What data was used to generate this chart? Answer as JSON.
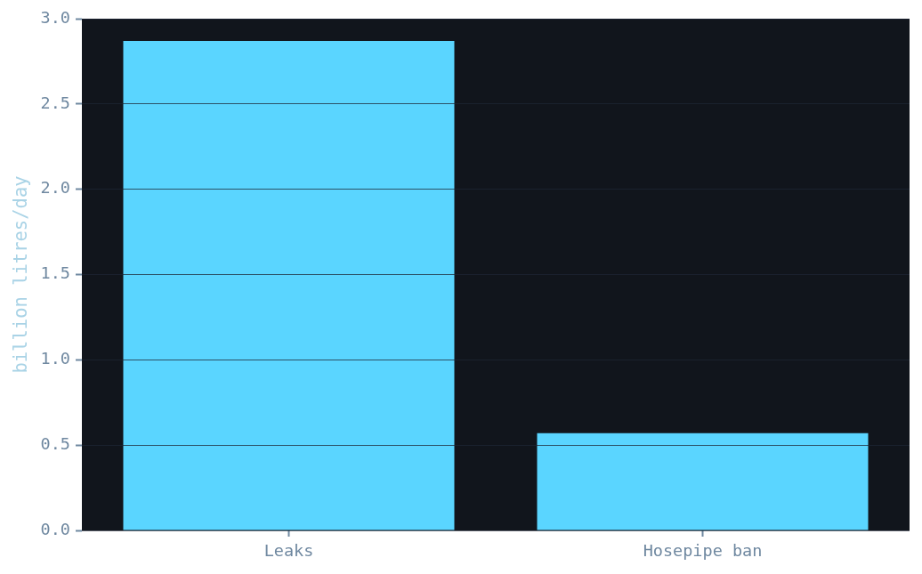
{
  "chart_data": {
    "type": "bar",
    "ylabel": "billion litres/day",
    "categories": [
      "Leaks",
      "Hosepipe ban"
    ],
    "values": [
      2.87,
      0.57
    ],
    "color": "#5ad5ff",
    "ylim": [
      0,
      3.0
    ],
    "yticks": [
      {
        "value": 0,
        "label": "0.0"
      },
      0.5,
      {
        "value": 1,
        "label": "1.0"
      },
      1.5,
      {
        "value": 2,
        "label": "2.0"
      },
      2.5,
      {
        "value": 3,
        "label": "3.0"
      }
    ],
    "grid": "y"
  }
}
